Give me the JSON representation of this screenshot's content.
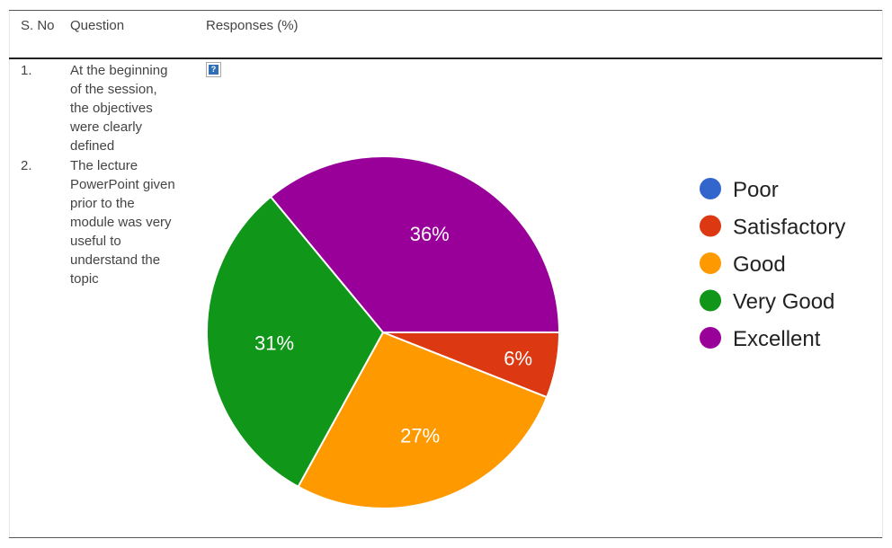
{
  "table": {
    "headers": {
      "sno": "S. No",
      "question": "Question",
      "responses": "Responses (%)"
    },
    "rows": [
      {
        "sno": "1.",
        "question": "At the beginning of the session, the objectives were clearly defined"
      },
      {
        "sno": "2.",
        "question": "The lecture PowerPoint given prior to the module was very useful to understand the topic"
      }
    ],
    "broken_image_icon": "question-mark-icon"
  },
  "chart_data": {
    "type": "pie",
    "categories": [
      "Poor",
      "Satisfactory",
      "Good",
      "Very Good",
      "Excellent"
    ],
    "values": [
      0,
      6,
      27,
      31,
      36
    ],
    "labels": [
      "",
      "6%",
      "27%",
      "31%",
      "36%"
    ],
    "colors": [
      "#3366cc",
      "#dc3912",
      "#ff9900",
      "#109618",
      "#990099"
    ],
    "legend": "right"
  }
}
